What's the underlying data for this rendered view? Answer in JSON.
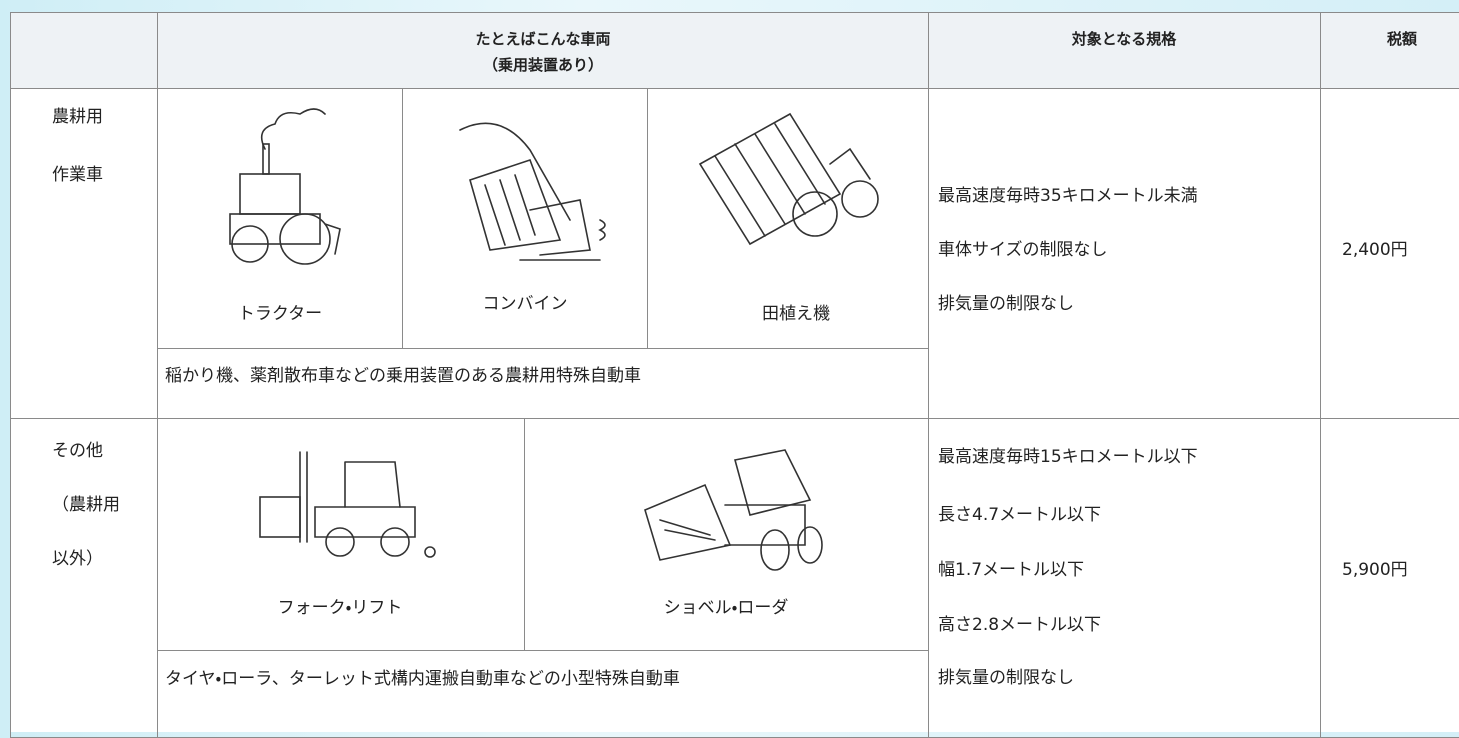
{
  "table": {
    "header": {
      "vehicles": "たとえばこんな車両",
      "vehicles_note": "（乗用装置あり）",
      "specs": "対象となる規格",
      "tax": "税額"
    },
    "rows": [
      {
        "category": [
          "農耕用",
          "作業車"
        ],
        "vehicles": [
          "トラクター",
          "コンバイン",
          "田植え機"
        ],
        "description": "稲かり機、薬剤散布車などの乗用装置のある農耕用特殊自動車",
        "specs": [
          "最高速度毎時35キロメートル未満",
          "車体サイズの制限なし",
          "排気量の制限なし"
        ],
        "tax": "2,400円"
      },
      {
        "category": [
          "その他",
          "（農耕用",
          "以外）"
        ],
        "vehicles": [
          "フォーク・リフト",
          "ショベル・ローダ"
        ],
        "description": "タイヤ・ローラ、ターレット式構内運搬自動車などの小型特殊自動車",
        "specs": [
          "最高速度毎時15キロメートル以下",
          "長さ4.7メートル以下",
          "幅1.7メートル以下",
          "高さ2.8メートル以下",
          "排気量の制限なし"
        ],
        "tax": "5,900円"
      }
    ]
  }
}
